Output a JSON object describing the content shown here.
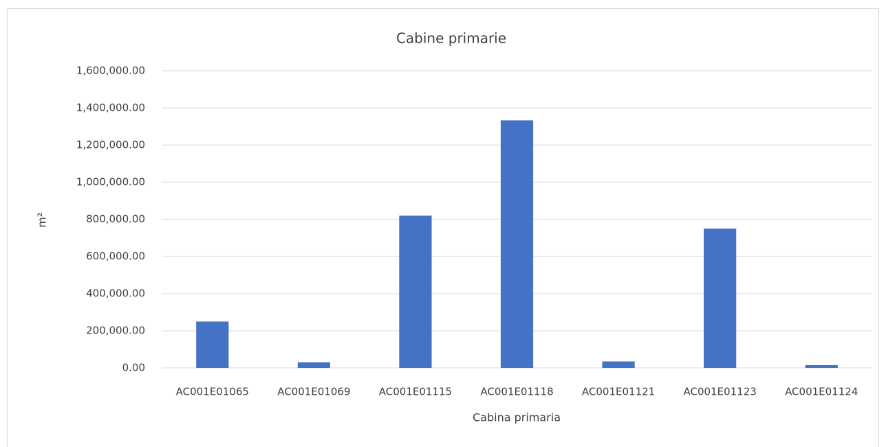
{
  "chart_data": {
    "type": "bar",
    "title": "Cabine primarie",
    "x_label": "Cabina primaria",
    "y_label": "m²",
    "categories": [
      "AC001E01065",
      "AC001E01069",
      "AC001E01115",
      "AC001E01118",
      "AC001E01121",
      "AC001E01123",
      "AC001E01124"
    ],
    "values": [
      250000,
      30000,
      820000,
      1333000,
      35000,
      750000,
      15000
    ],
    "color": "#4472c4",
    "ylim": [
      0,
      1600000
    ],
    "yticks": [
      {
        "value": 0,
        "label": "0.00"
      },
      {
        "value": 200000,
        "label": "200,000.00"
      },
      {
        "value": 400000,
        "label": "400,000.00"
      },
      {
        "value": 600000,
        "label": "600,000.00"
      },
      {
        "value": 800000,
        "label": "800,000.00"
      },
      {
        "value": 1000000,
        "label": "1,000,000.00"
      },
      {
        "value": 1200000,
        "label": "1,200,000.00"
      },
      {
        "value": 1400000,
        "label": "1,400,000.00"
      },
      {
        "value": 1600000,
        "label": "1,600,000.00"
      }
    ],
    "grid": true
  }
}
